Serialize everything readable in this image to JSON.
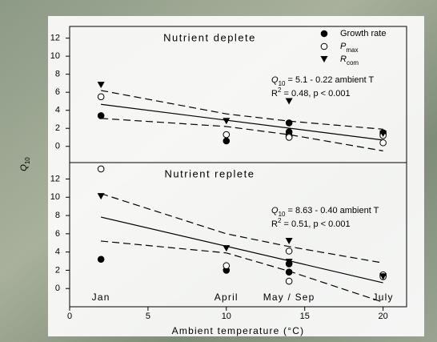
{
  "chart_data": [
    {
      "type": "scatter",
      "title": "Nutrient deplete",
      "xlim": [
        0,
        21.5
      ],
      "ylim": [
        -1.8,
        13.3
      ],
      "yticks": [
        0,
        2,
        4,
        6,
        8,
        10,
        12
      ],
      "ylabel": {
        "main": "Q",
        "sub": "10"
      },
      "legend": "upper right",
      "series": [
        {
          "name": "Growth rate",
          "marker": "filled-circle",
          "color": "#000000",
          "x": [
            2,
            10,
            14,
            14,
            14,
            20,
            20
          ],
          "values": [
            3.4,
            0.6,
            2.6,
            1.6,
            1.2,
            1.3,
            1.5
          ]
        },
        {
          "name": "P",
          "name_sub": "max",
          "marker": "open-circle",
          "color": "#000000",
          "x": [
            2,
            10,
            14,
            14,
            20,
            20
          ],
          "values": [
            5.5,
            1.3,
            1.1,
            1.0,
            0.4,
            1.2
          ]
        },
        {
          "name": "R",
          "name_sub": "com",
          "marker": "triangle-down",
          "color": "#000000",
          "x": [
            2,
            10,
            14,
            20
          ],
          "values": [
            6.8,
            2.8,
            5.0,
            1.4
          ]
        }
      ],
      "fit": {
        "x": [
          2,
          20
        ],
        "values": [
          4.66,
          0.7
        ]
      },
      "band_upper": {
        "x": [
          2,
          10,
          14,
          20
        ],
        "values": [
          6.2,
          3.6,
          2.8,
          1.9
        ]
      },
      "band_lower": {
        "x": [
          2,
          10,
          14,
          20
        ],
        "values": [
          3.1,
          2.2,
          1.3,
          -0.5
        ]
      },
      "equation": {
        "main": "Q",
        "sub": "10",
        "rest": " = 5.1 - 0.22 ambient T"
      },
      "stats": {
        "main": "R",
        "sup": "2",
        "rest": " = 0.48, p < 0.001"
      }
    },
    {
      "type": "scatter",
      "title": "Nutrient replete",
      "xlim": [
        0,
        21.5
      ],
      "ylim": [
        -2,
        13.8
      ],
      "yticks": [
        0,
        2,
        4,
        6,
        8,
        10,
        12
      ],
      "xticks": [
        0,
        5,
        10,
        15,
        20
      ],
      "xlabel": "Ambient temperature (°C)",
      "series": [
        {
          "marker": "filled-circle",
          "color": "#000000",
          "x": [
            2,
            10,
            14,
            14,
            20
          ],
          "values": [
            3.2,
            2.0,
            2.7,
            1.8,
            1.4
          ]
        },
        {
          "marker": "open-circle",
          "color": "#000000",
          "x": [
            2,
            10,
            14,
            14,
            20,
            20
          ],
          "values": [
            13.1,
            2.5,
            4.1,
            0.8,
            1.5,
            1.3
          ]
        },
        {
          "marker": "triangle-down",
          "color": "#000000",
          "x": [
            2,
            10,
            14,
            14,
            20
          ],
          "values": [
            10.1,
            4.4,
            5.2,
            2.9,
            1.3
          ]
        }
      ],
      "fit": {
        "x": [
          2,
          20
        ],
        "values": [
          7.83,
          0.63
        ]
      },
      "band_upper": {
        "x": [
          2,
          10,
          14,
          20
        ],
        "values": [
          10.4,
          6.0,
          4.6,
          2.8
        ]
      },
      "band_lower": {
        "x": [
          2,
          10,
          14,
          20
        ],
        "values": [
          5.2,
          3.9,
          1.9,
          -1.5
        ]
      },
      "equation": {
        "main": "Q",
        "sub": "10",
        "rest": " = 8.63 - 0.40 ambient T"
      },
      "stats": {
        "main": "R",
        "sup": "2",
        "rest": " = 0.51, p < 0.001"
      },
      "month_labels": {
        "x": [
          2,
          10,
          14,
          20
        ],
        "labels": [
          "Jan",
          "April",
          "May / Sep",
          "July"
        ]
      }
    }
  ]
}
